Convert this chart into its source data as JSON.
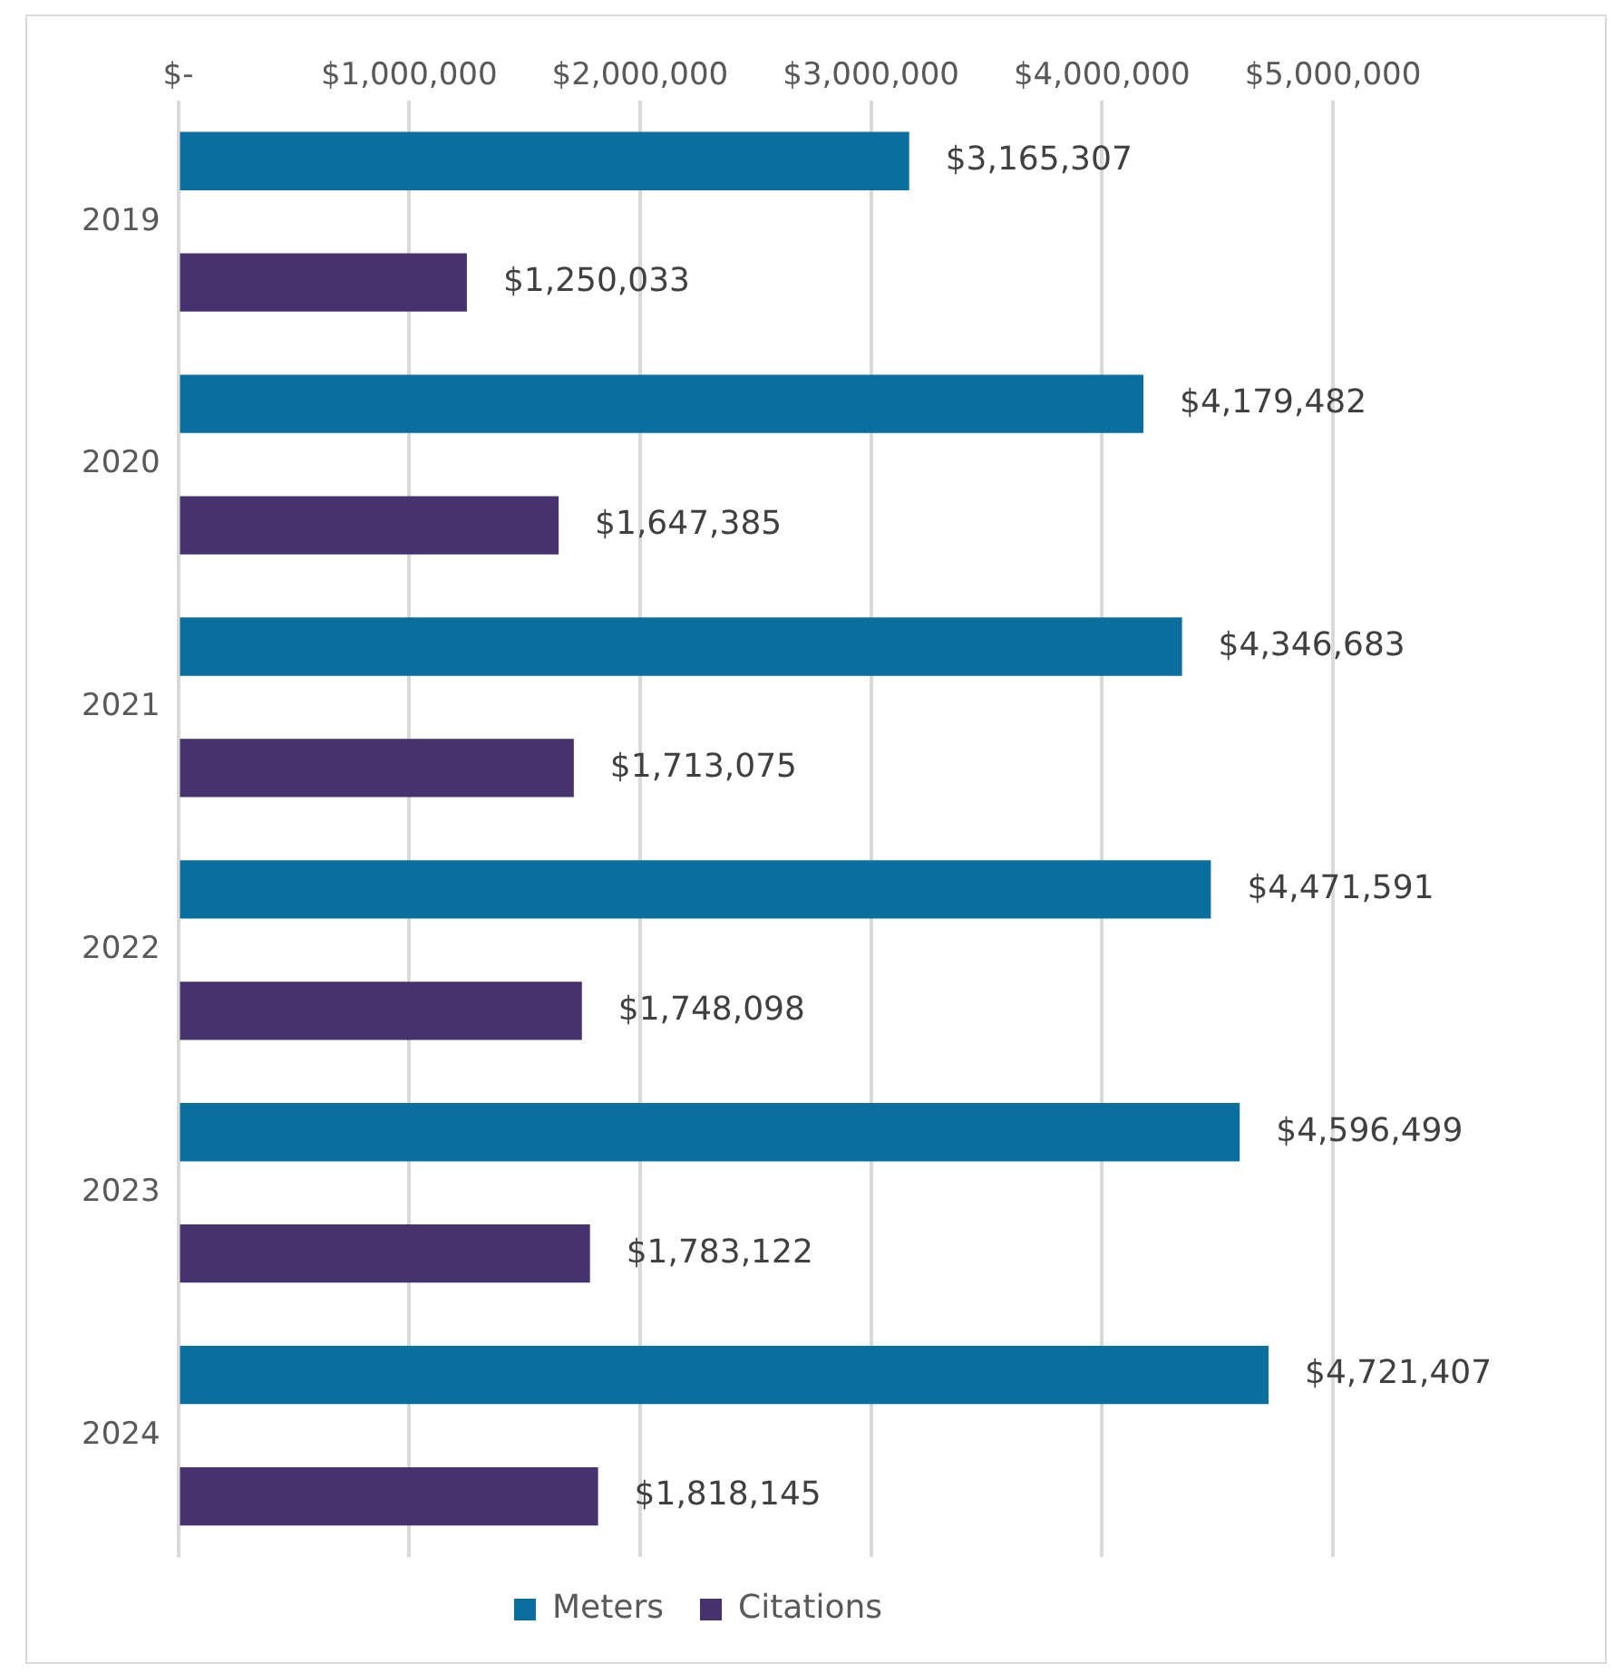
{
  "chart_data": {
    "type": "bar",
    "orientation": "horizontal",
    "categories": [
      "2019",
      "2020",
      "2021",
      "2022",
      "2023",
      "2024"
    ],
    "series": [
      {
        "name": "Meters",
        "color": "#0a6e9e",
        "values": [
          3165307,
          4179482,
          4346683,
          4471591,
          4596499,
          4721407
        ],
        "value_labels": [
          "$3,165,307",
          "$4,179,482",
          "$4,346,683",
          "$4,471,591",
          "$4,596,499",
          "$4,721,407"
        ]
      },
      {
        "name": "Citations",
        "color": "#45326f",
        "values": [
          1250033,
          1647385,
          1713075,
          1748098,
          1783122,
          1818145
        ],
        "value_labels": [
          "$1,250,033",
          "$1,647,385",
          "$1,713,075",
          "$1,748,098",
          "$1,783,122",
          "$1,818,145"
        ]
      }
    ],
    "xlim": [
      0,
      5000000
    ],
    "xticks": [
      {
        "value": 0,
        "label": "$-"
      },
      {
        "value": 1000000,
        "label": "$1,000,000"
      },
      {
        "value": 2000000,
        "label": "$2,000,000"
      },
      {
        "value": 3000000,
        "label": "$3,000,000"
      },
      {
        "value": 4000000,
        "label": "$4,000,000"
      },
      {
        "value": 5000000,
        "label": "$5,000,000"
      }
    ],
    "grid": "x",
    "legend": "bottom"
  }
}
